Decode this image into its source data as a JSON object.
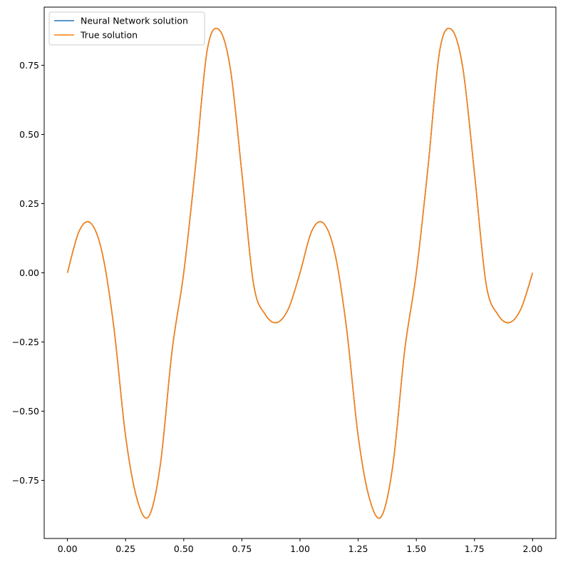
{
  "chart_data": {
    "type": "line",
    "title": "",
    "xlabel": "",
    "ylabel": "",
    "xlim": [
      -0.1,
      2.1
    ],
    "ylim": [
      -0.96,
      0.96
    ],
    "xticks": [
      0.0,
      0.25,
      0.5,
      0.75,
      1.0,
      1.25,
      1.5,
      1.75,
      2.0
    ],
    "xtick_labels": [
      "0.00",
      "0.25",
      "0.50",
      "0.75",
      "1.00",
      "1.25",
      "1.50",
      "1.75",
      "2.00"
    ],
    "yticks": [
      -0.75,
      -0.5,
      -0.25,
      0.0,
      0.25,
      0.5,
      0.75
    ],
    "ytick_labels": [
      "−0.75",
      "−0.50",
      "−0.25",
      "0.00",
      "0.25",
      "0.50",
      "0.75"
    ],
    "grid": false,
    "legend_position": "top-left",
    "series": [
      {
        "name": "Neural Network solution",
        "color": "#1f77b4",
        "x": [
          0.0,
          0.05,
          0.1,
          0.15,
          0.2,
          0.25,
          0.3,
          0.35,
          0.4,
          0.45,
          0.5,
          0.55,
          0.6,
          0.65,
          0.7,
          0.75,
          0.8,
          0.85,
          0.9,
          0.95,
          1.0,
          1.05,
          1.1,
          1.15,
          1.2,
          1.25,
          1.3,
          1.35,
          1.4,
          1.45,
          1.5,
          1.55,
          1.6,
          1.65,
          1.7,
          1.75,
          1.8,
          1.85,
          1.9,
          1.95,
          2.0
        ],
        "y": [
          0.0,
          0.15,
          0.18,
          0.07,
          -0.2,
          -0.59,
          -0.82,
          -0.88,
          -0.69,
          -0.28,
          0.0,
          0.38,
          0.8,
          0.88,
          0.74,
          0.36,
          -0.04,
          -0.15,
          -0.18,
          -0.13,
          0.0,
          0.15,
          0.18,
          0.07,
          -0.2,
          -0.59,
          -0.82,
          -0.88,
          -0.69,
          -0.28,
          0.0,
          0.38,
          0.8,
          0.88,
          0.74,
          0.36,
          -0.04,
          -0.15,
          -0.18,
          -0.13,
          0.0
        ]
      },
      {
        "name": "True solution",
        "color": "#ff7f0e",
        "x": [
          0.0,
          0.05,
          0.1,
          0.15,
          0.2,
          0.25,
          0.3,
          0.35,
          0.4,
          0.45,
          0.5,
          0.55,
          0.6,
          0.65,
          0.7,
          0.75,
          0.8,
          0.85,
          0.9,
          0.95,
          1.0,
          1.05,
          1.1,
          1.15,
          1.2,
          1.25,
          1.3,
          1.35,
          1.4,
          1.45,
          1.5,
          1.55,
          1.6,
          1.65,
          1.7,
          1.75,
          1.8,
          1.85,
          1.9,
          1.95,
          2.0
        ],
        "y": [
          0.0,
          0.15,
          0.18,
          0.07,
          -0.2,
          -0.59,
          -0.82,
          -0.88,
          -0.69,
          -0.28,
          0.0,
          0.38,
          0.8,
          0.88,
          0.74,
          0.36,
          -0.04,
          -0.15,
          -0.18,
          -0.13,
          0.0,
          0.15,
          0.18,
          0.07,
          -0.2,
          -0.59,
          -0.82,
          -0.88,
          -0.69,
          -0.28,
          0.0,
          0.38,
          0.8,
          0.88,
          0.74,
          0.36,
          -0.04,
          -0.15,
          -0.18,
          -0.13,
          0.0
        ]
      }
    ]
  }
}
